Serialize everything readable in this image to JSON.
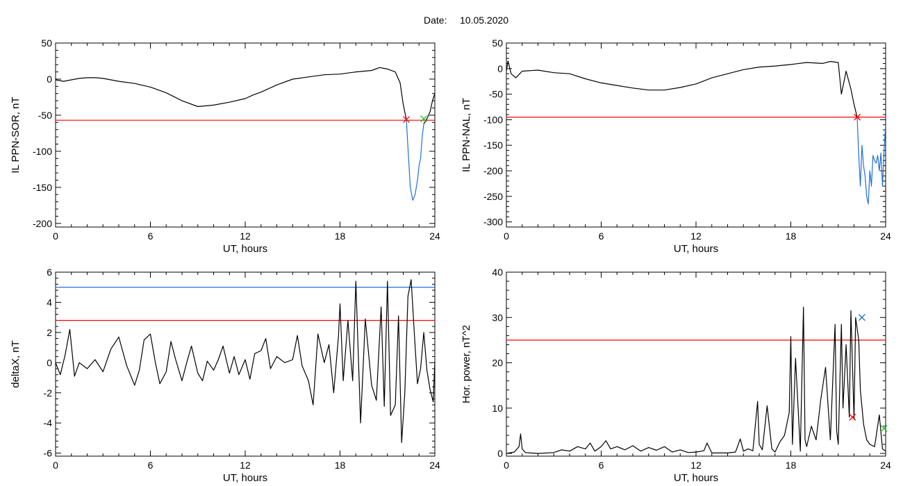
{
  "header": {
    "date_label": "Date:",
    "date_value": "10.05.2020"
  },
  "colors": {
    "trace": "#000000",
    "red_line": "#ff0000",
    "blue_line": "#1e6fd9",
    "green_marker": "#22c022",
    "red_marker": "#ff0000",
    "blue_marker": "#1e6fd9"
  },
  "chart_data": [
    {
      "id": "sor",
      "type": "line",
      "xlabel": "UT, hours",
      "ylabel": "IL PPN-SOR, nT",
      "xlim": [
        0,
        24
      ],
      "ylim": [
        -205,
        50
      ],
      "xticks": [
        0,
        6,
        12,
        18,
        24
      ],
      "yticks": [
        50,
        0,
        -50,
        -100,
        -150,
        -200
      ],
      "grid": false,
      "series": [
        {
          "color": "black",
          "x": [
            0,
            0.5,
            1,
            1.5,
            2,
            2.5,
            3,
            4,
            5,
            6,
            7,
            8,
            9,
            10,
            11,
            12,
            12.5,
            13,
            14,
            15,
            16,
            17,
            18,
            19,
            20,
            20.5,
            21,
            21.5,
            21.8,
            22,
            22.2
          ],
          "y": [
            -1,
            -3,
            -1,
            1,
            2,
            2,
            1,
            -3,
            -6,
            -11,
            -19,
            -30,
            -38,
            -36,
            -32,
            -27,
            -22,
            -18,
            -8,
            0,
            3,
            6,
            7,
            10,
            12,
            16,
            14,
            10,
            -5,
            -35,
            -56
          ]
        },
        {
          "color": "blue",
          "x": [
            22.2,
            22.3,
            22.45,
            22.6,
            22.75,
            22.9,
            23.0,
            23.1,
            23.2,
            23.3
          ],
          "y": [
            -56,
            -95,
            -150,
            -168,
            -160,
            -140,
            -120,
            -110,
            -80,
            -62
          ]
        },
        {
          "color": "black",
          "x": [
            23.3,
            23.5,
            23.7,
            23.85,
            24
          ],
          "y": [
            -62,
            -55,
            -45,
            -30,
            -20
          ]
        }
      ],
      "thresholds": [
        {
          "y": -57,
          "color": "red"
        }
      ],
      "markers": [
        {
          "x": 22.2,
          "y": -56,
          "color": "red",
          "symbol": "x"
        },
        {
          "x": 23.3,
          "y": -55,
          "color": "green",
          "symbol": "x"
        }
      ]
    },
    {
      "id": "nal",
      "type": "line",
      "xlabel": "UT, hours",
      "ylabel": "IL PPN-NAL, nT",
      "xlim": [
        0,
        24
      ],
      "ylim": [
        -310,
        50
      ],
      "xticks": [
        0,
        6,
        12,
        18,
        24
      ],
      "yticks": [
        50,
        0,
        -50,
        -100,
        -150,
        -200,
        -250,
        -300
      ],
      "grid": false,
      "series": [
        {
          "color": "black",
          "x": [
            0,
            0.1,
            0.3,
            0.6,
            1,
            2,
            3,
            4,
            5,
            6,
            7,
            8,
            9,
            10,
            11,
            12,
            13,
            14,
            15,
            16,
            17,
            18,
            19,
            20,
            20.5,
            21,
            21.2,
            21.5,
            21.8,
            22,
            22.2
          ],
          "y": [
            -5,
            15,
            -10,
            -18,
            -5,
            -3,
            -8,
            -10,
            -20,
            -28,
            -33,
            -38,
            -42,
            -42,
            -37,
            -30,
            -18,
            -10,
            -2,
            3,
            5,
            8,
            12,
            10,
            14,
            12,
            -50,
            -5,
            -40,
            -70,
            -95
          ]
        },
        {
          "color": "blue",
          "x": [
            22.2,
            22.3,
            22.4,
            22.5,
            22.6,
            22.7,
            22.8,
            22.9,
            23.0,
            23.1,
            23.2,
            23.3,
            23.4,
            23.5,
            23.6,
            23.7,
            23.8,
            23.9,
            24.0
          ],
          "y": [
            -95,
            -170,
            -230,
            -150,
            -190,
            -210,
            -250,
            -265,
            -200,
            -230,
            -170,
            -180,
            -185,
            -170,
            -200,
            -165,
            -230,
            -160,
            -110
          ]
        }
      ],
      "thresholds": [
        {
          "y": -95,
          "color": "red"
        }
      ],
      "markers": [
        {
          "x": 22.2,
          "y": -95,
          "color": "red",
          "symbol": "x"
        }
      ]
    },
    {
      "id": "deltax",
      "type": "line",
      "xlabel": "UT, hours",
      "ylabel": "deltaX, nT",
      "xlim": [
        0,
        24
      ],
      "ylim": [
        -6.2,
        6
      ],
      "xticks": [
        0,
        6,
        12,
        18,
        24
      ],
      "yticks": [
        6,
        4,
        2,
        0,
        -2,
        -4,
        -6
      ],
      "grid": false,
      "series": [
        {
          "color": "black",
          "x": [
            0,
            0.3,
            0.6,
            0.9,
            1.2,
            1.5,
            2,
            2.5,
            3,
            3.5,
            4,
            4.5,
            5,
            5.3,
            5.6,
            6,
            6.3,
            6.6,
            7,
            7.3,
            7.6,
            8,
            8.3,
            8.6,
            9,
            9.3,
            9.6,
            10,
            10.3,
            10.6,
            11,
            11.3,
            11.6,
            12,
            12.3,
            12.6,
            13,
            13.3,
            13.6,
            14,
            14.5,
            15,
            15.3,
            15.6,
            16,
            16.3,
            16.6,
            17,
            17.3,
            17.6,
            17.9,
            18.0,
            18.2,
            18.5,
            18.8,
            19.0,
            19.3,
            19.6,
            20.0,
            20.3,
            20.6,
            20.8,
            21.0,
            21.2,
            21.5,
            21.7,
            21.9,
            22.1,
            22.3,
            22.5,
            22.7,
            22.9,
            23.1,
            23.3,
            23.5,
            23.7,
            23.9,
            24.0
          ],
          "y": [
            0,
            -0.8,
            0.5,
            2.2,
            -0.9,
            0,
            -0.4,
            0.2,
            -0.6,
            0.9,
            1.7,
            -0.2,
            -1.5,
            -0.5,
            1.5,
            1.9,
            0.1,
            -1.4,
            -0.6,
            1.4,
            0.2,
            -1.2,
            0,
            1.1,
            -0.7,
            -1.2,
            0.1,
            -0.5,
            0.2,
            1.1,
            -0.7,
            0.4,
            -0.8,
            0.2,
            -1.1,
            0.6,
            0.8,
            1.6,
            -0.4,
            0.4,
            0,
            0.2,
            1.8,
            -0.2,
            -1.2,
            -2.8,
            1.9,
            0,
            1.2,
            -2.0,
            1.7,
            3.9,
            -1.2,
            2.8,
            -1.2,
            5.4,
            -4.0,
            2.9,
            -1.5,
            -2.5,
            3.7,
            -2.9,
            5.4,
            -3.5,
            -2.8,
            3.1,
            -5.3,
            -2.0,
            4.4,
            5.5,
            2.0,
            -1.4,
            -0.4,
            2.0,
            -0.5,
            -1.8,
            -2.6,
            0.1
          ]
        }
      ],
      "thresholds": [
        {
          "y": 2.8,
          "color": "red"
        },
        {
          "y": 5.0,
          "color": "blue"
        }
      ],
      "markers": []
    },
    {
      "id": "power",
      "type": "line",
      "xlabel": "UT, hours",
      "ylabel": "Hor. power, nT^2",
      "xlim": [
        0,
        24
      ],
      "ylim": [
        -0.6,
        40
      ],
      "xticks": [
        0,
        6,
        12,
        18,
        24
      ],
      "yticks": [
        40,
        30,
        20,
        10,
        0
      ],
      "grid": false,
      "series": [
        {
          "color": "black",
          "x": [
            0,
            0.5,
            0.8,
            0.9,
            1.0,
            1.2,
            1.5,
            2,
            3,
            3.5,
            4,
            4.5,
            5,
            5.3,
            5.6,
            6,
            6.3,
            6.6,
            7,
            7.5,
            8,
            8.5,
            9,
            9.5,
            10,
            10.5,
            11,
            11.5,
            12,
            12.5,
            12.7,
            13,
            14,
            14.5,
            14.8,
            15,
            15.3,
            15.6,
            15.9,
            16.0,
            16.2,
            16.5,
            16.8,
            17.0,
            17.3,
            17.6,
            17.9,
            18.0,
            18.1,
            18.3,
            18.6,
            18.8,
            18.9,
            19.0,
            19.3,
            19.6,
            19.9,
            20.2,
            20.5,
            20.8,
            20.9,
            21.0,
            21.2,
            21.3,
            21.5,
            21.7,
            21.8,
            22.0,
            22.1,
            22.3,
            22.4,
            22.6,
            22.8,
            23.0,
            23.3,
            23.6,
            23.8,
            24.0
          ],
          "y": [
            0,
            0.3,
            1.5,
            4.3,
            1.0,
            0.2,
            0.1,
            0,
            0.2,
            0.8,
            0.5,
            1.5,
            1.0,
            2.3,
            0.5,
            1.5,
            2.8,
            1.0,
            1.5,
            0.8,
            1.7,
            0.5,
            1.3,
            0.7,
            1.5,
            0.3,
            0.8,
            0.2,
            0.3,
            0.6,
            2.3,
            0.1,
            0.1,
            0.3,
            3.2,
            0.5,
            1.0,
            0.6,
            11.5,
            2.0,
            0.8,
            10.5,
            1.0,
            0.3,
            2.5,
            4.0,
            9.0,
            25.8,
            2.0,
            21.0,
            0.5,
            32.3,
            3.0,
            1.5,
            6.0,
            3.0,
            12.0,
            19.0,
            3.0,
            28.5,
            5.0,
            2.0,
            28.5,
            10.0,
            24.0,
            8.0,
            31.5,
            7.5,
            30.0,
            25.0,
            14.0,
            6.5,
            3.0,
            2.0,
            1.5,
            8.5,
            1.0,
            0.5
          ]
        }
      ],
      "thresholds": [
        {
          "y": 25,
          "color": "red"
        }
      ],
      "markers": [
        {
          "x": 22.5,
          "y": 30,
          "color": "blue",
          "symbol": "x"
        },
        {
          "x": 21.9,
          "y": 8,
          "color": "red",
          "symbol": "x"
        },
        {
          "x": 23.9,
          "y": 5.5,
          "color": "green",
          "symbol": "x"
        }
      ]
    }
  ]
}
